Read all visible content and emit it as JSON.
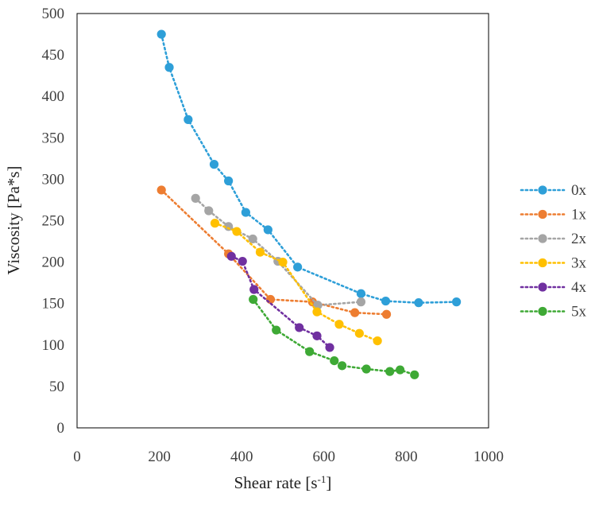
{
  "chart_data": {
    "type": "scatter",
    "title": "",
    "xlabel": "Shear rate [s",
    "xlabel_superscript": "-1",
    "xlabel_suffix": "]",
    "ylabel": "Viscosity [Pa*s]",
    "xlim": [
      0,
      1000
    ],
    "ylim": [
      0,
      500
    ],
    "xticks": [
      0,
      200,
      400,
      600,
      800,
      1000
    ],
    "yticks": [
      0,
      50,
      100,
      150,
      200,
      250,
      300,
      350,
      400,
      450,
      500
    ],
    "grid": false,
    "legend_position": "right",
    "line_style": "dotted",
    "series": [
      {
        "name": "0x",
        "color": "#2E9FD8",
        "x": [
          205,
          224,
          270,
          333,
          368,
          410,
          464,
          536,
          690,
          750,
          830,
          922
        ],
        "y": [
          475,
          435,
          372,
          318,
          298,
          260,
          239,
          194,
          162,
          153,
          151,
          152
        ]
      },
      {
        "name": "1x",
        "color": "#ED7D31",
        "x": [
          205,
          368,
          470,
          572,
          675,
          752
        ],
        "y": [
          287,
          210,
          155,
          152,
          139,
          137
        ]
      },
      {
        "name": "2x",
        "color": "#A5A5A5",
        "x": [
          288,
          320,
          368,
          427,
          488,
          585,
          690
        ],
        "y": [
          277,
          262,
          243,
          228,
          201,
          148,
          152
        ]
      },
      {
        "name": "3x",
        "color": "#FFC000",
        "x": [
          335,
          388,
          445,
          500,
          583,
          637,
          686,
          730
        ],
        "y": [
          247,
          237,
          212,
          200,
          140,
          125,
          114,
          105
        ]
      },
      {
        "name": "4x",
        "color": "#7030A0",
        "x": [
          375,
          402,
          430,
          540,
          583,
          614
        ],
        "y": [
          207,
          201,
          167,
          121,
          111,
          97
        ]
      },
      {
        "name": "5x",
        "color": "#3EA935",
        "x": [
          428,
          484,
          565,
          625,
          644,
          703,
          760,
          785,
          820
        ],
        "y": [
          155,
          118,
          92,
          81,
          75,
          71,
          68,
          70,
          64
        ]
      }
    ]
  }
}
